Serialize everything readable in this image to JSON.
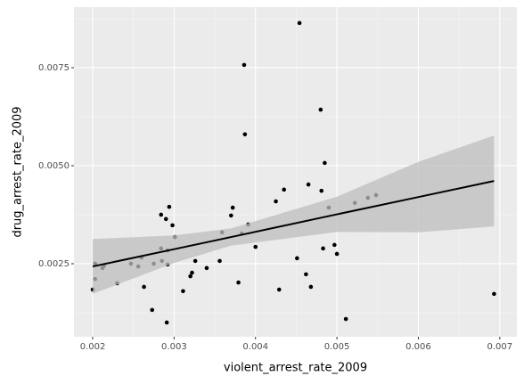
{
  "chart_data": {
    "type": "scatter",
    "x_label": "violent_arrest_rate_2009",
    "y_label": "drug_arrest_rate_2009",
    "x": [
      0.002,
      0.00203,
      0.00203,
      0.00212,
      0.00214,
      0.0023,
      0.00247,
      0.00256,
      0.0026,
      0.00263,
      0.00273,
      0.00275,
      0.00284,
      0.00284,
      0.00285,
      0.0029,
      0.00291,
      0.00292,
      0.00292,
      0.00294,
      0.00298,
      0.00301,
      0.00311,
      0.0032,
      0.00322,
      0.00326,
      0.0034,
      0.00356,
      0.00359,
      0.00372,
      0.0037,
      0.00379,
      0.00383,
      0.00386,
      0.00387,
      0.00391,
      0.004,
      0.00425,
      0.00429,
      0.00435,
      0.00451,
      0.00454,
      0.00462,
      0.00465,
      0.00468,
      0.0048,
      0.00481,
      0.00483,
      0.00485,
      0.0049,
      0.00497,
      0.005,
      0.00511,
      0.00522,
      0.00538,
      0.00548,
      0.00693
    ],
    "y": [
      0.00184,
      0.0025,
      0.00211,
      0.00239,
      0.00245,
      0.002,
      0.0025,
      0.00243,
      0.00266,
      0.00191,
      0.00132,
      0.0025,
      0.00375,
      0.00289,
      0.00257,
      0.00364,
      0.001,
      0.00284,
      0.00248,
      0.00395,
      0.00348,
      0.00318,
      0.0018,
      0.00218,
      0.00227,
      0.00257,
      0.00239,
      0.00257,
      0.0033,
      0.00393,
      0.00373,
      0.00202,
      0.00327,
      0.00757,
      0.0058,
      0.0035,
      0.00293,
      0.00409,
      0.00184,
      0.00439,
      0.00264,
      0.00864,
      0.00223,
      0.00452,
      0.00191,
      0.00643,
      0.00436,
      0.00289,
      0.00507,
      0.00393,
      0.00298,
      0.00275,
      0.00109,
      0.00405,
      0.00418,
      0.00425,
      0.00173
    ],
    "color": "#000000",
    "fit": {
      "x": [
        0.002,
        0.003,
        0.0037,
        0.005,
        0.006,
        0.00693
      ],
      "y": [
        0.00243,
        0.00287,
        0.00318,
        0.00376,
        0.0042,
        0.00461
      ],
      "lower": [
        0.00173,
        0.00252,
        0.00296,
        0.00331,
        0.0033,
        0.00345
      ],
      "upper": [
        0.00313,
        0.00322,
        0.0034,
        0.00421,
        0.0051,
        0.00577
      ],
      "color": "#000000",
      "band_color": "#bebebe"
    },
    "xlim": [
      0.00177,
      0.00721
    ],
    "ylim": [
      0.000636,
      0.009045
    ],
    "xticks": [
      0.002,
      0.003,
      0.004,
      0.005,
      0.006,
      0.007
    ],
    "yticks": [
      0.0025,
      {
        "value": 0.005,
        "label": "0.0050"
      },
      0.0075
    ],
    "grid": true
  }
}
